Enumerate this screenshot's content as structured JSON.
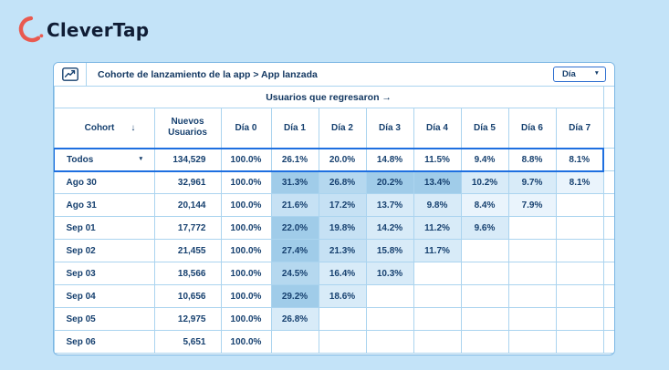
{
  "brand": {
    "name": "CleverTap",
    "arc_color": "#e95a50",
    "text_color": "#101d35"
  },
  "icons": {
    "caret": "▼",
    "sort": "↓"
  },
  "panel": {
    "title": "Cohorte de lanzamiento de la app > App lanzada",
    "range_selector": {
      "value": "Día"
    },
    "accent_colors": {
      "selected_row_outline": "#1e6fe0",
      "grid_line": "#abd4ef",
      "text_navy": "#16406f"
    },
    "table": {
      "banner": "Usuarios que regresaron →",
      "columns": {
        "cohort": "Cohort",
        "new_users": "Nuevos Usuarios",
        "days": [
          "Día 0",
          "Día 1",
          "Día 2",
          "Día 3",
          "Día 4",
          "Día 5",
          "Día 6",
          "Día 7"
        ]
      },
      "heat_colors": [
        "#eaf4fc",
        "#d8ebf8",
        "#c6e1f4",
        "#b5d8ef",
        "#a0cce9"
      ],
      "rows": [
        {
          "cohort": "Todos",
          "selected": true,
          "dropdown": true,
          "users": "134,529",
          "day0": "100.0%",
          "values": [
            "26.1%",
            "20.0%",
            "14.8%",
            "11.5%",
            "9.4%",
            "8.8%",
            "8.1%"
          ],
          "shades": [
            null,
            null,
            null,
            null,
            null,
            null,
            null
          ]
        },
        {
          "cohort": "Ago 30",
          "users": "32,961",
          "day0": "100.0%",
          "values": [
            "31.3%",
            "26.8%",
            "20.2%",
            "13.4%",
            "10.2%",
            "9.7%",
            "8.1%"
          ],
          "shades": [
            4,
            3,
            4,
            4,
            1,
            1,
            0
          ]
        },
        {
          "cohort": "Ago 31",
          "users": "20,144",
          "day0": "100.0%",
          "values": [
            "21.6%",
            "17.2%",
            "13.7%",
            "9.8%",
            "8.4%",
            "7.9%",
            ""
          ],
          "shades": [
            2,
            2,
            1,
            1,
            0,
            0,
            null
          ]
        },
        {
          "cohort": "Sep 01",
          "users": "17,772",
          "day0": "100.0%",
          "values": [
            "22.0%",
            "19.8%",
            "14.2%",
            "11.2%",
            "9.6%",
            "",
            ""
          ],
          "shades": [
            4,
            2,
            1,
            1,
            1,
            null,
            null
          ]
        },
        {
          "cohort": "Sep 02",
          "users": "21,455",
          "day0": "100.0%",
          "values": [
            "27.4%",
            "21.3%",
            "15.8%",
            "11.7%",
            "",
            "",
            ""
          ],
          "shades": [
            4,
            2,
            1,
            1,
            null,
            null,
            null
          ]
        },
        {
          "cohort": "Sep 03",
          "users": "18,566",
          "day0": "100.0%",
          "values": [
            "24.5%",
            "16.4%",
            "10.3%",
            "",
            "",
            "",
            ""
          ],
          "shades": [
            3,
            1,
            1,
            null,
            null,
            null,
            null
          ]
        },
        {
          "cohort": "Sep 04",
          "users": "10,656",
          "day0": "100.0%",
          "values": [
            "29.2%",
            "18.6%",
            "",
            "",
            "",
            "",
            ""
          ],
          "shades": [
            4,
            1,
            null,
            null,
            null,
            null,
            null
          ]
        },
        {
          "cohort": "Sep 05",
          "users": "12,975",
          "day0": "100.0%",
          "values": [
            "26.8%",
            "",
            "",
            "",
            "",
            "",
            ""
          ],
          "shades": [
            1,
            null,
            null,
            null,
            null,
            null,
            null
          ]
        },
        {
          "cohort": "Sep 06",
          "users": "5,651",
          "day0": "100.0%",
          "values": [
            "",
            "",
            "",
            "",
            "",
            "",
            ""
          ],
          "shades": [
            null,
            null,
            null,
            null,
            null,
            null,
            null
          ]
        }
      ]
    }
  }
}
